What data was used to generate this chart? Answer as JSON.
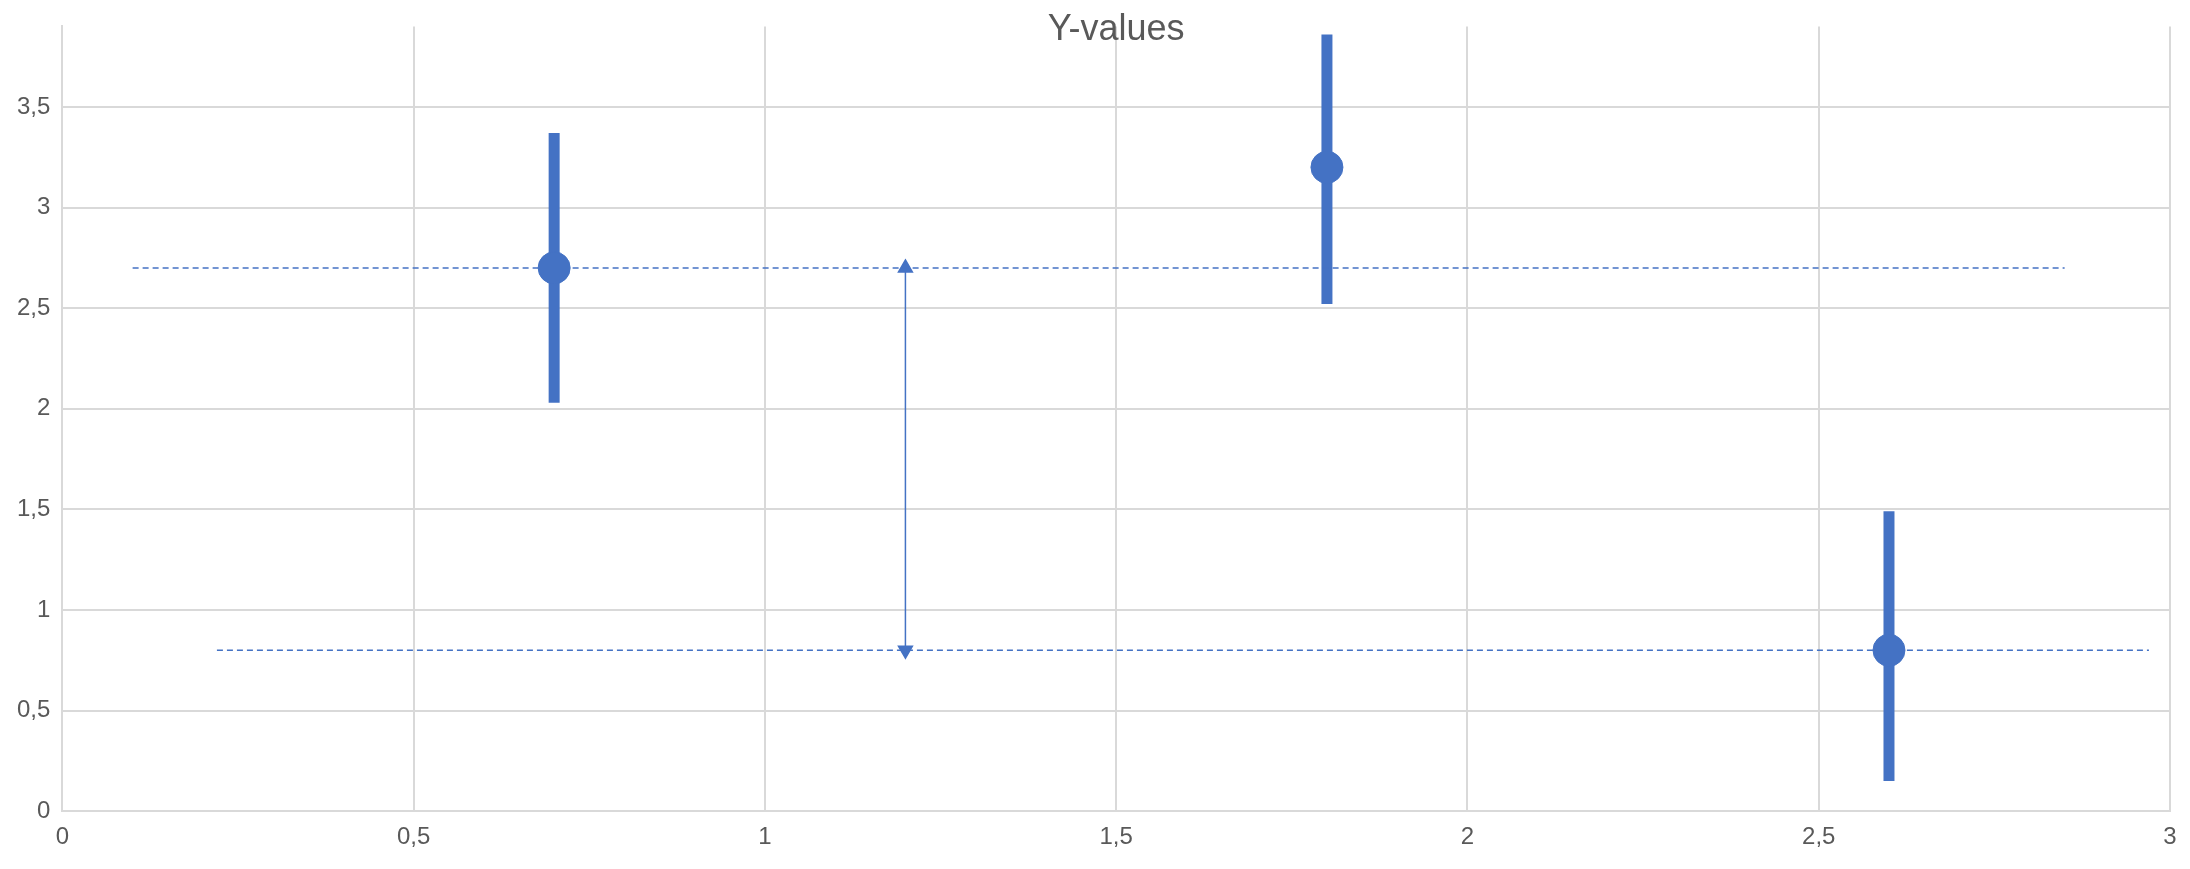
{
  "chart_data": {
    "type": "scatter",
    "title": "Y-values",
    "xlim": [
      0,
      3
    ],
    "xticks": [
      0,
      {
        "value": 0.5,
        "label": "0,5"
      },
      1,
      {
        "value": 1.5,
        "label": "1,5"
      },
      2,
      {
        "value": 2.5,
        "label": "2,5"
      },
      3
    ],
    "ylim": [
      0,
      3.9
    ],
    "yticks": [
      0,
      {
        "value": 0.5,
        "label": "0,5"
      },
      1,
      {
        "value": 1.5,
        "label": "1,5"
      },
      2,
      {
        "value": 2.5,
        "label": "2,5"
      },
      3,
      {
        "value": 3.5,
        "label": "3,5"
      }
    ],
    "grid": true,
    "legend": false,
    "series": [
      {
        "color": "#4472c4",
        "marker": "circle",
        "x": [
          0.7,
          1.8,
          2.6
        ],
        "values": [
          2.7,
          3.2,
          0.8
        ],
        "errors": [
          [
            2.03,
            3.37
          ],
          [
            2.52,
            3.86
          ],
          [
            0.15,
            1.49
          ]
        ]
      },
      {
        "type": "line",
        "color": "#4472c4",
        "marker": "none",
        "line_style": "dashed",
        "x": [
          0.1,
          2.85
        ],
        "values": [
          2.7,
          2.7
        ]
      },
      {
        "type": "line",
        "color": "#4472c4",
        "marker": "none",
        "line_style": "dashed",
        "x": [
          0.22,
          2.97
        ],
        "values": [
          0.8,
          0.8
        ]
      },
      {
        "type": "line",
        "color": "#4472c4",
        "marker": "triangle",
        "line_style": "solid",
        "x": [
          1.2,
          1.2
        ],
        "values": [
          0.8,
          2.7
        ]
      }
    ]
  }
}
